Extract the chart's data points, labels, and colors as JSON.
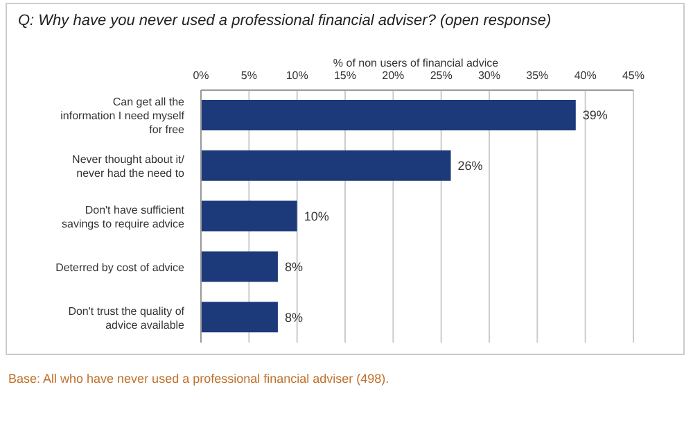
{
  "chart_data": {
    "type": "bar",
    "orientation": "horizontal",
    "title": "Q: Why have you never used a professional financial adviser? (open response)",
    "xlabel": "% of non users of financial advice",
    "categories": [
      "Can get all the information I need myself for free",
      "Never thought about it/ never had the need to",
      "Don't have sufficient savings to require advice",
      "Deterred by cost of advice",
      "Don't trust the quality of advice available"
    ],
    "values": [
      39,
      26,
      10,
      8,
      8
    ],
    "color": "#1c3a7a",
    "value_labels": [
      "39%",
      "26%",
      "10%",
      "8%",
      "8%"
    ],
    "xlim": [
      0,
      45
    ],
    "xticks": [
      {
        "value": 0,
        "label": "0%"
      },
      {
        "value": 5,
        "label": "5%"
      },
      {
        "value": 10,
        "label": "10%"
      },
      {
        "value": 15,
        "label": "15%"
      },
      {
        "value": 20,
        "label": "20%"
      },
      {
        "value": 25,
        "label": "25%"
      },
      {
        "value": 30,
        "label": "30%"
      },
      {
        "value": 35,
        "label": "35%"
      },
      {
        "value": 40,
        "label": "40%"
      },
      {
        "value": 45,
        "label": "45%"
      }
    ],
    "grid": "x",
    "legend": false,
    "annotations": [
      "Base: All who have never used a professional financial adviser (498)."
    ]
  }
}
